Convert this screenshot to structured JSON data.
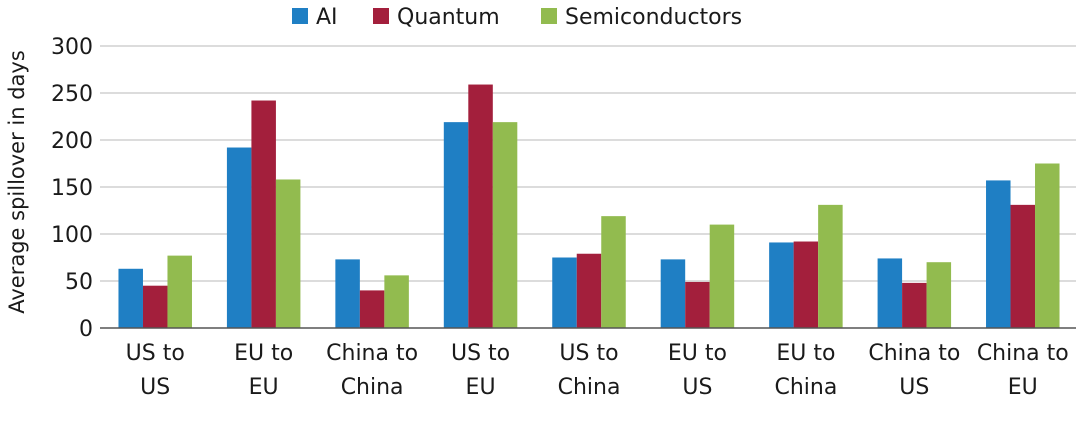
{
  "chart_data": {
    "type": "bar",
    "title": "",
    "xlabel": "",
    "ylabel": "Average spillover in days",
    "ylim": [
      0,
      300
    ],
    "yticks": [
      0,
      50,
      100,
      150,
      200,
      250,
      300
    ],
    "grid": true,
    "legend_position": "top-center",
    "categories": [
      [
        "US to",
        "US"
      ],
      [
        "EU to",
        "EU"
      ],
      [
        "China to",
        "China"
      ],
      [
        "US to",
        "EU"
      ],
      [
        "US to",
        "China"
      ],
      [
        "EU to",
        "US"
      ],
      [
        "EU to",
        "China"
      ],
      [
        "China to",
        "US"
      ],
      [
        "China to",
        "EU"
      ]
    ],
    "series": [
      {
        "name": "AI",
        "color": "#1f7fc4",
        "values": [
          63,
          192,
          73,
          219,
          75,
          73,
          91,
          74,
          157
        ]
      },
      {
        "name": "Quantum",
        "color": "#a31f3c",
        "values": [
          45,
          242,
          40,
          259,
          79,
          49,
          92,
          48,
          131
        ]
      },
      {
        "name": "Semiconductors",
        "color": "#92bb4f",
        "values": [
          77,
          158,
          56,
          219,
          119,
          110,
          131,
          70,
          175
        ]
      }
    ]
  }
}
